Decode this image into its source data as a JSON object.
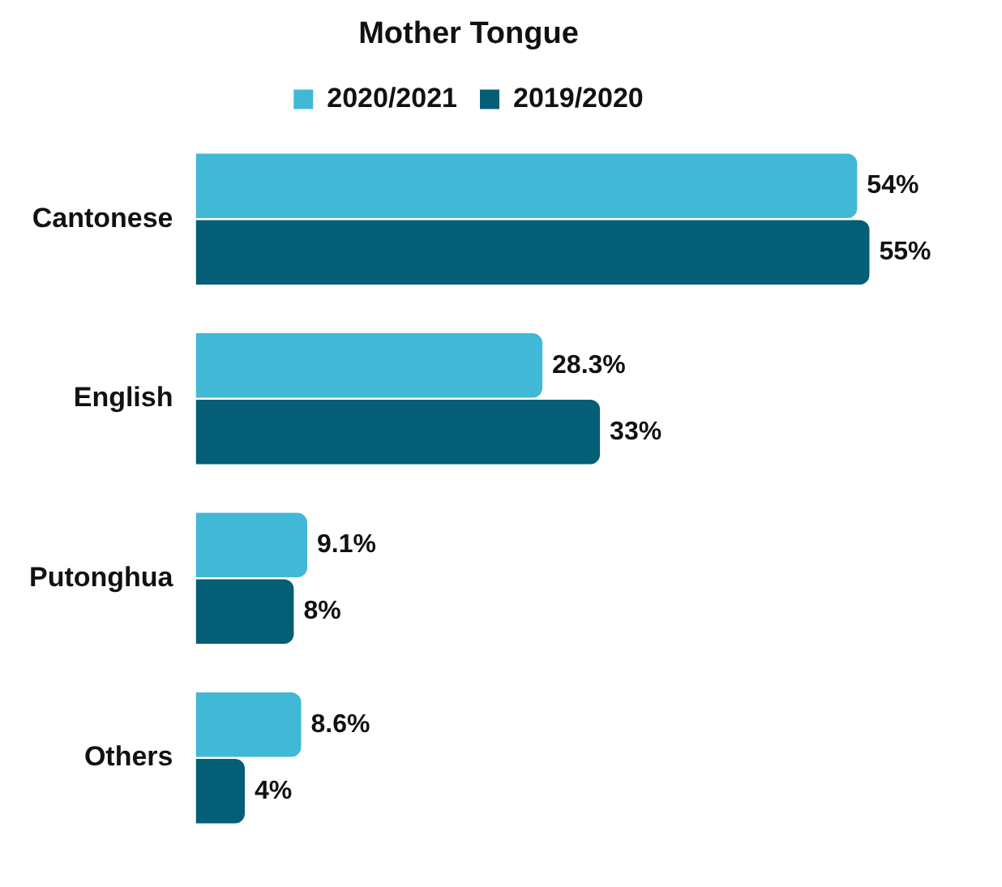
{
  "chart_data": {
    "type": "bar",
    "orientation": "horizontal",
    "title": "Mother Tongue",
    "categories": [
      "Cantonese",
      "English",
      "Putonghua",
      "Others"
    ],
    "series": [
      {
        "name": "2020/2021",
        "color": "#41b8d5",
        "values": [
          54,
          28.3,
          9.1,
          8.6
        ],
        "value_labels": [
          "54%",
          "28.3%",
          "9.1%",
          "8.6%"
        ]
      },
      {
        "name": "2019/2020",
        "color": "#045e75",
        "values": [
          55,
          33,
          8,
          4
        ],
        "value_labels": [
          "55%",
          "33%",
          "8%",
          "4%"
        ]
      }
    ],
    "legend": "top",
    "grid": false,
    "tick_labels": "y"
  }
}
